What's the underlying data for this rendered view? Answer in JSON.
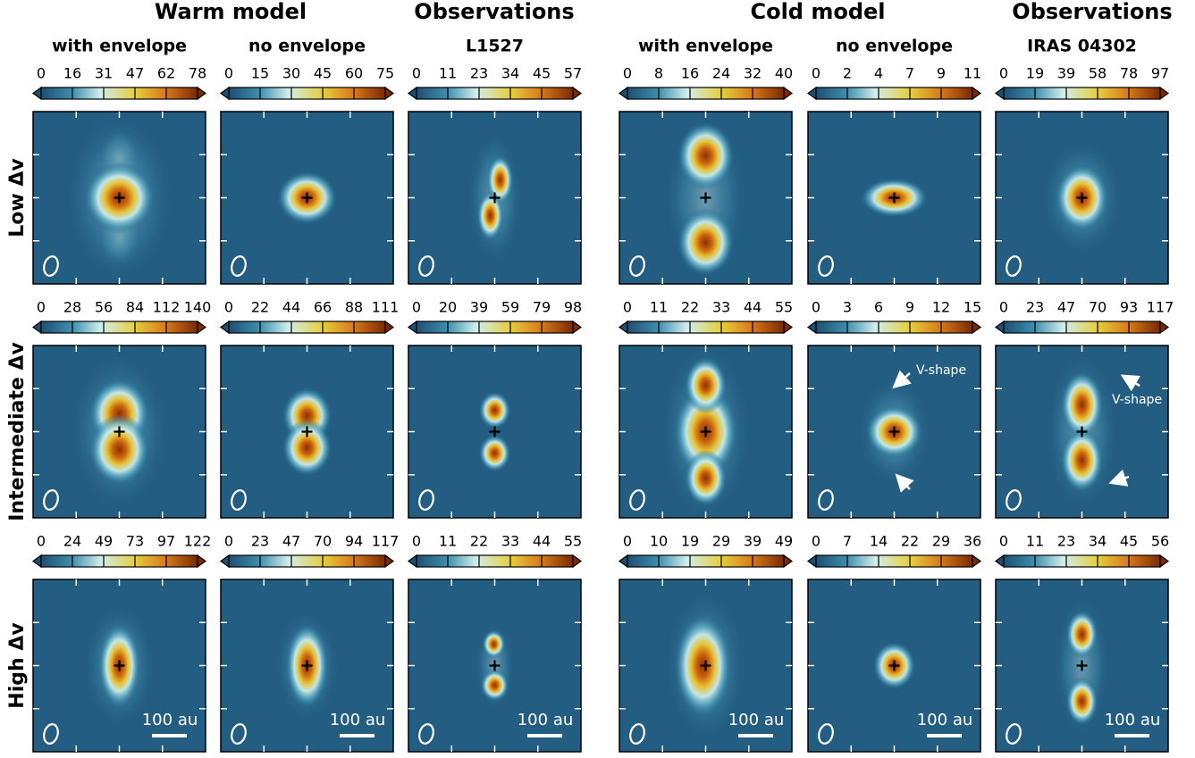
{
  "group_titles": [
    "Warm model",
    "Observations",
    "Cold model",
    "Observations"
  ],
  "column_titles": [
    "with envelope",
    "no envelope",
    "L1527",
    "with envelope",
    "no envelope",
    "IRAS 04302"
  ],
  "row_labels": [
    "Low Δv",
    "Intermediate Δv",
    "High Δv"
  ],
  "colorbar_ticks": [
    [
      [
        0,
        16,
        31,
        47,
        62,
        78
      ],
      [
        0,
        15,
        30,
        45,
        60,
        75
      ],
      [
        0,
        11,
        23,
        34,
        45,
        57
      ],
      [
        0,
        8,
        16,
        24,
        32,
        40
      ],
      [
        0,
        2,
        4,
        7,
        9,
        11
      ],
      [
        0,
        19,
        39,
        58,
        78,
        97
      ]
    ],
    [
      [
        0,
        28,
        56,
        84,
        112,
        140
      ],
      [
        0,
        22,
        44,
        66,
        88,
        111
      ],
      [
        0,
        20,
        39,
        59,
        79,
        98
      ],
      [
        0,
        11,
        22,
        33,
        44,
        55
      ],
      [
        0,
        3,
        6,
        9,
        12,
        15
      ],
      [
        0,
        23,
        47,
        70,
        93,
        117
      ]
    ],
    [
      [
        0,
        24,
        49,
        73,
        97,
        122
      ],
      [
        0,
        23,
        47,
        70,
        94,
        117
      ],
      [
        0,
        11,
        22,
        33,
        44,
        55
      ],
      [
        0,
        10,
        19,
        29,
        39,
        49
      ],
      [
        0,
        7,
        14,
        22,
        29,
        36
      ],
      [
        0,
        11,
        23,
        34,
        45,
        56
      ]
    ]
  ],
  "annotations": [
    "V-shape",
    "V-shape"
  ],
  "scale_bar": "100 au"
}
